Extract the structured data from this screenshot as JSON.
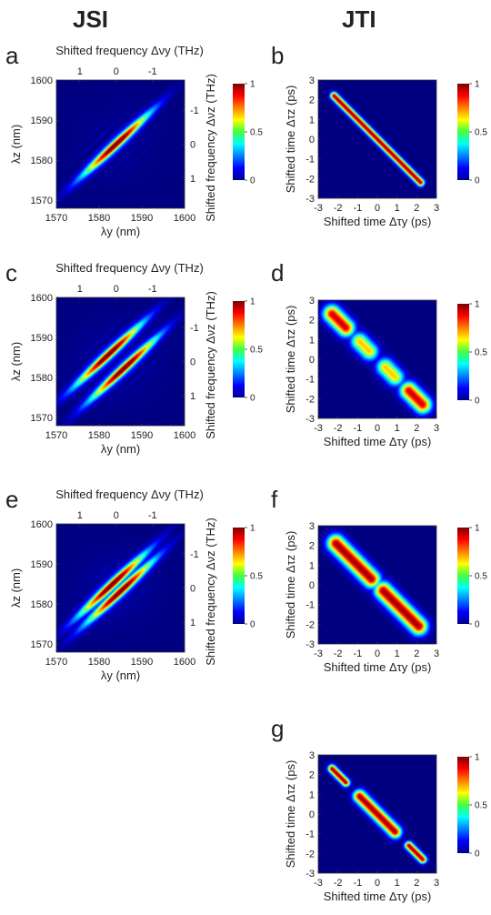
{
  "headers": {
    "left": "JSI",
    "right": "JTI"
  },
  "colorbar": {
    "ticks": [
      "1",
      "0.5",
      "0"
    ]
  },
  "chart_data": [
    {
      "panel": "a",
      "type": "heatmap",
      "kind": "jsi",
      "xlabel": "λy (nm)",
      "ylabel": "λz (nm)",
      "top_label": "Shifted frequency Δνy (THz)",
      "right_label": "Shifted frequency Δνz (THz)",
      "xlim": [
        1570,
        1600
      ],
      "ylim": [
        1568,
        1600
      ],
      "x_ticks": [
        "1570",
        "1580",
        "1590",
        "1600"
      ],
      "y_ticks": [
        "1570",
        "1580",
        "1590",
        "1600"
      ],
      "top_ticks": [
        "1",
        "0",
        "-1"
      ],
      "right_ticks": [
        "-1",
        "0",
        "1"
      ],
      "lobes": [
        {
          "offset": 0,
          "peak": 1.0
        }
      ]
    },
    {
      "panel": "b",
      "type": "heatmap",
      "kind": "jti",
      "xlabel": "Shifted time Δτy (ps)",
      "ylabel": "Shifted time Δτz (ps)",
      "xlim": [
        -3,
        3
      ],
      "ylim": [
        -3,
        3
      ],
      "x_ticks": [
        "-3",
        "-2",
        "-1",
        "0",
        "1",
        "2",
        "3"
      ],
      "y_ticks": [
        "3",
        "2",
        "1",
        "0",
        "-1",
        "-2",
        "-3"
      ],
      "segments": [
        {
          "from": [
            -2.2,
            2.2
          ],
          "to": [
            2.2,
            -2.2
          ],
          "peak": 1.0,
          "width": 0.13
        }
      ]
    },
    {
      "panel": "c",
      "type": "heatmap",
      "kind": "jsi",
      "xlabel": "λy (nm)",
      "ylabel": "λz (nm)",
      "top_label": "Shifted frequency Δνy (THz)",
      "right_label": "Shifted frequency Δνz (THz)",
      "xlim": [
        1570,
        1600
      ],
      "ylim": [
        1568,
        1600
      ],
      "x_ticks": [
        "1570",
        "1580",
        "1590",
        "1600"
      ],
      "y_ticks": [
        "1570",
        "1580",
        "1590",
        "1600"
      ],
      "top_ticks": [
        "1",
        "0",
        "-1"
      ],
      "right_ticks": [
        "-1",
        "0",
        "1"
      ],
      "lobes": [
        {
          "offset": -2.5,
          "peak": 1.0
        },
        {
          "offset": 2.5,
          "peak": 1.0
        }
      ]
    },
    {
      "panel": "d",
      "type": "heatmap",
      "kind": "jti",
      "xlabel": "Shifted time Δτy (ps)",
      "ylabel": "Shifted time Δτz (ps)",
      "xlim": [
        -3,
        3
      ],
      "ylim": [
        -3,
        3
      ],
      "x_ticks": [
        "-3",
        "-2",
        "-1",
        "0",
        "1",
        "2",
        "3"
      ],
      "y_ticks": [
        "3",
        "2",
        "1",
        "0",
        "-1",
        "-2",
        "-3"
      ],
      "segments": [
        {
          "from": [
            -2.3,
            2.3
          ],
          "to": [
            -1.6,
            1.6
          ],
          "peak": 0.95,
          "width": 0.3
        },
        {
          "from": [
            -0.9,
            0.9
          ],
          "to": [
            -0.4,
            0.4
          ],
          "peak": 0.7,
          "width": 0.3
        },
        {
          "from": [
            0.4,
            -0.4
          ],
          "to": [
            0.9,
            -0.9
          ],
          "peak": 0.7,
          "width": 0.3
        },
        {
          "from": [
            1.6,
            -1.6
          ],
          "to": [
            2.3,
            -2.3
          ],
          "peak": 0.95,
          "width": 0.3
        }
      ]
    },
    {
      "panel": "e",
      "type": "heatmap",
      "kind": "jsi",
      "xlabel": "λy (nm)",
      "ylabel": "λz (nm)",
      "top_label": "Shifted frequency Δνy (THz)",
      "right_label": "Shifted frequency Δνz (THz)",
      "xlim": [
        1570,
        1600
      ],
      "ylim": [
        1568,
        1600
      ],
      "x_ticks": [
        "1570",
        "1580",
        "1590",
        "1600"
      ],
      "y_ticks": [
        "1570",
        "1580",
        "1590",
        "1600"
      ],
      "top_ticks": [
        "1",
        "0",
        "-1"
      ],
      "right_ticks": [
        "-1",
        "0",
        "1"
      ],
      "lobes": [
        {
          "offset": -1.3,
          "peak": 1.0
        },
        {
          "offset": 1.3,
          "peak": 1.0
        }
      ]
    },
    {
      "panel": "f",
      "type": "heatmap",
      "kind": "jti",
      "xlabel": "Shifted time Δτy (ps)",
      "ylabel": "Shifted time Δτz (ps)",
      "xlim": [
        -3,
        3
      ],
      "ylim": [
        -3,
        3
      ],
      "x_ticks": [
        "-3",
        "-2",
        "-1",
        "0",
        "1",
        "2",
        "3"
      ],
      "y_ticks": [
        "3",
        "2",
        "1",
        "0",
        "-1",
        "-2",
        "-3"
      ],
      "segments": [
        {
          "from": [
            -2.1,
            2.1
          ],
          "to": [
            -0.3,
            0.3
          ],
          "peak": 1.0,
          "width": 0.3
        },
        {
          "from": [
            0.3,
            -0.3
          ],
          "to": [
            2.1,
            -2.1
          ],
          "peak": 1.0,
          "width": 0.3
        }
      ]
    },
    {
      "panel": "g",
      "type": "heatmap",
      "kind": "jti",
      "xlabel": "Shifted time Δτy (ps)",
      "ylabel": "Shifted time Δτz (ps)",
      "xlim": [
        -3,
        3
      ],
      "ylim": [
        -3,
        3
      ],
      "x_ticks": [
        "-3",
        "-2",
        "-1",
        "0",
        "1",
        "2",
        "3"
      ],
      "y_ticks": [
        "3",
        "2",
        "1",
        "0",
        "-1",
        "-2",
        "-3"
      ],
      "segments": [
        {
          "from": [
            -2.3,
            2.3
          ],
          "to": [
            -1.6,
            1.6
          ],
          "peak": 1.0,
          "width": 0.14
        },
        {
          "from": [
            -0.9,
            0.9
          ],
          "to": [
            0.9,
            -0.9
          ],
          "peak": 1.0,
          "width": 0.22
        },
        {
          "from": [
            1.6,
            -1.6
          ],
          "to": [
            2.3,
            -2.3
          ],
          "peak": 1.0,
          "width": 0.14
        }
      ]
    }
  ]
}
